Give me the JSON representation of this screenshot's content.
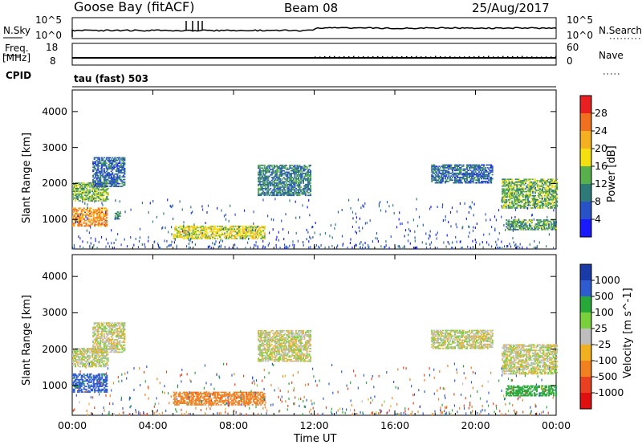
{
  "header": {
    "station": "Goose Bay (fitACF)",
    "beam": "Beam 08",
    "date": "25/Aug/2017"
  },
  "top_panels": {
    "nsky_label": "N.Sky",
    "nsearch_label": "N.Search",
    "noise_ticks": [
      "10^5",
      "10^0"
    ],
    "freq_label": "Freq.",
    "freq_unit": "[MHz]",
    "freq_ticks": [
      "18",
      "8"
    ],
    "nave_label": "Nave",
    "nave_ticks": [
      "60",
      "0"
    ],
    "cpid_label": "CPID",
    "cpid_text": "tau (fast) 503"
  },
  "colors": {
    "power_scale": [
      "#1a1aff",
      "#2a52c8",
      "#2e7a78",
      "#58b04c",
      "#f4e010",
      "#f4b020",
      "#f07020",
      "#e82020"
    ],
    "velocity_scale": [
      "#1a3aa8",
      "#2f5bd0",
      "#28a838",
      "#7ad03a",
      "#bebebe",
      "#f0b020",
      "#f08020",
      "#e84020",
      "#e01010"
    ]
  },
  "chart_data": [
    {
      "type": "heatmap",
      "title": "Power",
      "xlabel": "Time UT",
      "ylabel": "Slant Range [km]",
      "x_ticks": [
        "00:00",
        "04:00",
        "08:00",
        "12:00",
        "16:00",
        "20:00",
        "00:00"
      ],
      "xlim": [
        0,
        24
      ],
      "ylim": [
        180,
        4600
      ],
      "y_ticks": [
        "1000",
        "2000",
        "3000",
        "4000"
      ],
      "colorbar_label": "Power [dB]",
      "colorbar_ticks": [
        "4",
        "8",
        "12",
        "16",
        "20",
        "24",
        "28"
      ],
      "colorbar_range": [
        0,
        32
      ],
      "echo_regions": [
        {
          "t": [
            0.0,
            1.8
          ],
          "r": [
            1500,
            2000
          ],
          "level": 14
        },
        {
          "t": [
            0.0,
            1.7
          ],
          "r": [
            800,
            1300
          ],
          "level": 24
        },
        {
          "t": [
            1.0,
            2.6
          ],
          "r": [
            1900,
            2700
          ],
          "level": 8
        },
        {
          "t": [
            2.1,
            2.4
          ],
          "r": [
            1000,
            1200
          ],
          "level": 12
        },
        {
          "t": [
            5.0,
            9.5
          ],
          "r": [
            450,
            800
          ],
          "level": 18
        },
        {
          "t": [
            9.2,
            11.8
          ],
          "r": [
            1650,
            2500
          ],
          "level": 10
        },
        {
          "t": [
            17.8,
            20.8
          ],
          "r": [
            2000,
            2500
          ],
          "level": 8
        },
        {
          "t": [
            21.3,
            24.0
          ],
          "r": [
            1300,
            2100
          ],
          "level": 14
        },
        {
          "t": [
            21.5,
            24.0
          ],
          "r": [
            700,
            1000
          ],
          "level": 12
        }
      ]
    },
    {
      "type": "heatmap",
      "title": "Velocity",
      "xlabel": "Time UT",
      "ylabel": "Slant Range [km]",
      "x_ticks": [
        "00:00",
        "04:00",
        "08:00",
        "12:00",
        "16:00",
        "20:00",
        "00:00"
      ],
      "xlim": [
        0,
        24
      ],
      "ylim": [
        180,
        4600
      ],
      "y_ticks": [
        "1000",
        "2000",
        "3000",
        "4000"
      ],
      "colorbar_label": "Velocity [m s^-1]",
      "colorbar_ticks": [
        "1000",
        "500",
        "100",
        "25",
        "-25",
        "-100",
        "-500",
        "-1000"
      ],
      "echo_regions": [
        {
          "t": [
            0.0,
            1.8
          ],
          "r": [
            1500,
            2000
          ],
          "vel": 0
        },
        {
          "t": [
            0.0,
            1.7
          ],
          "r": [
            800,
            1300
          ],
          "vel": 300
        },
        {
          "t": [
            1.0,
            2.6
          ],
          "r": [
            1900,
            2700
          ],
          "vel": 0
        },
        {
          "t": [
            5.0,
            9.5
          ],
          "r": [
            450,
            800
          ],
          "vel": -200
        },
        {
          "t": [
            9.2,
            11.8
          ],
          "r": [
            1650,
            2500
          ],
          "vel": 0
        },
        {
          "t": [
            17.8,
            20.8
          ],
          "r": [
            2000,
            2500
          ],
          "vel": 0
        },
        {
          "t": [
            21.3,
            24.0
          ],
          "r": [
            1300,
            2100
          ],
          "vel": 0
        },
        {
          "t": [
            21.5,
            24.0
          ],
          "r": [
            700,
            1000
          ],
          "vel": 150
        }
      ]
    }
  ]
}
